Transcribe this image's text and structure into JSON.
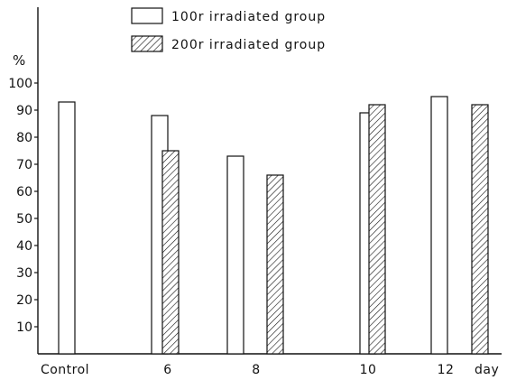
{
  "chart_data": {
    "type": "bar",
    "ylabel": "%",
    "xunit": "day",
    "categories": [
      "Control",
      "6",
      "8",
      "10",
      "12"
    ],
    "yticks": [
      10,
      20,
      30,
      40,
      50,
      60,
      70,
      80,
      90,
      100
    ],
    "ylim": [
      0,
      106
    ],
    "grid": false,
    "legend_position": "top",
    "series": [
      {
        "name": "100r irradiated group",
        "style": "open",
        "values": [
          93,
          88,
          73,
          89,
          95
        ]
      },
      {
        "name": "200r irradiated group",
        "style": "hatched",
        "values": [
          null,
          75,
          66,
          92,
          92
        ]
      }
    ]
  }
}
